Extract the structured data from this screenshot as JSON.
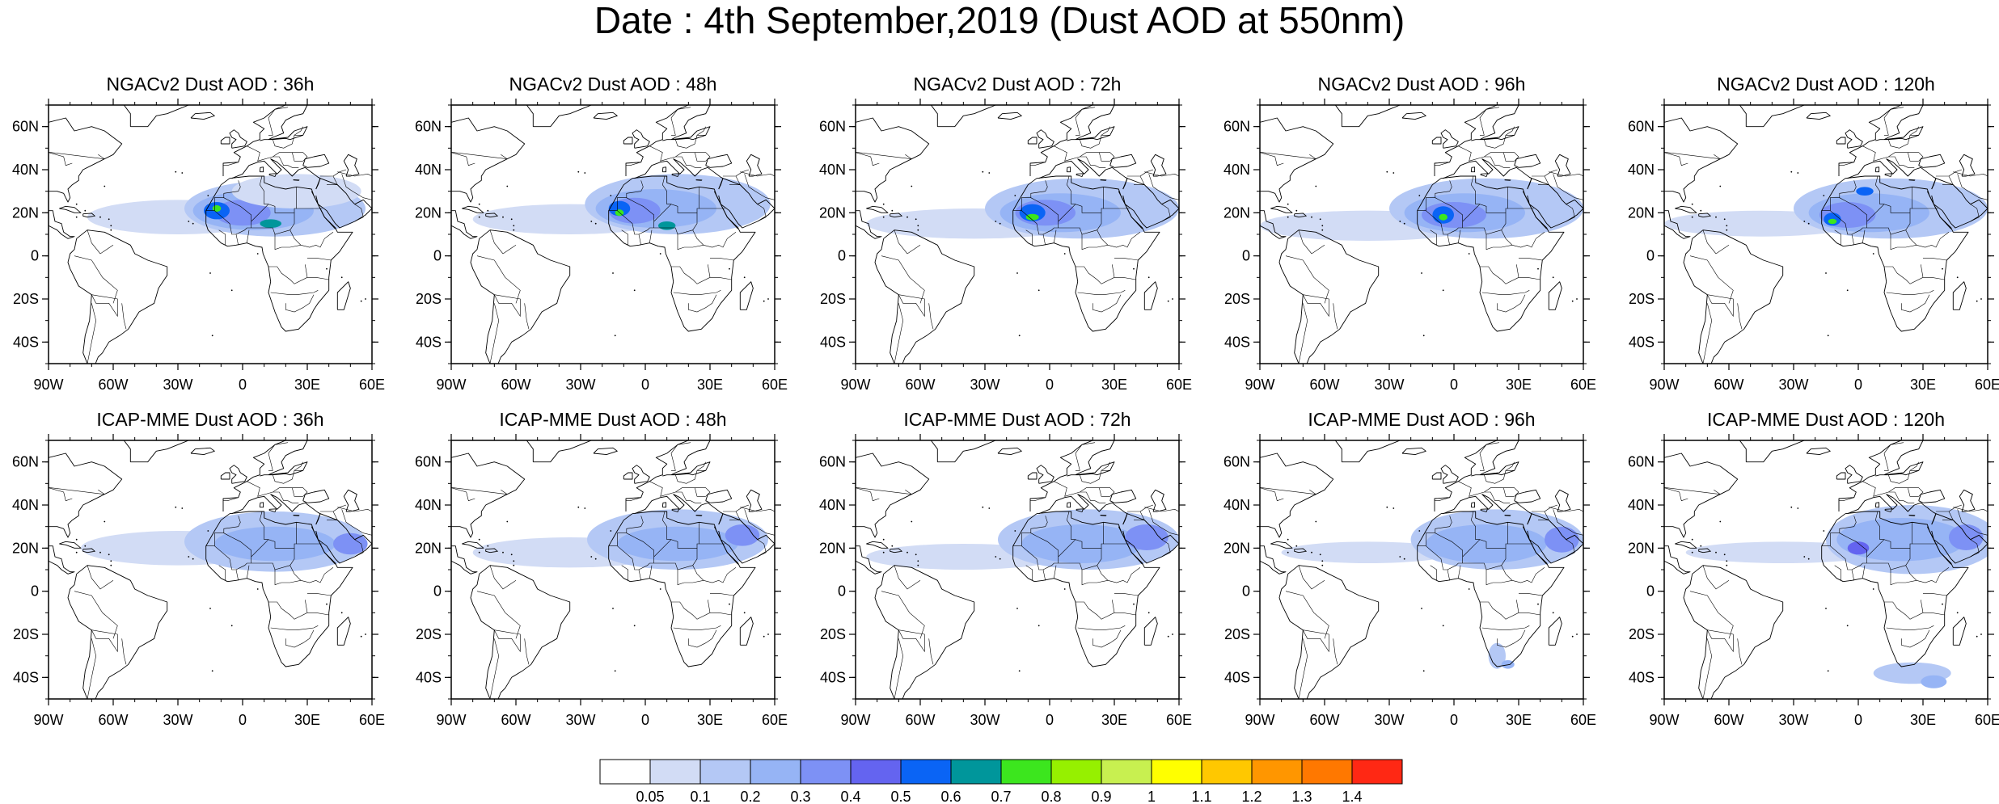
{
  "title": "Date : 4th September,2019 (Dust AOD at 550nm)",
  "lon_range": [
    -90,
    60
  ],
  "lat_range": [
    -50,
    70
  ],
  "lon_ticks": [
    {
      "value": -90,
      "label": "90W"
    },
    {
      "value": -60,
      "label": "60W"
    },
    {
      "value": -30,
      "label": "30W"
    },
    {
      "value": 0,
      "label": "0"
    },
    {
      "value": 30,
      "label": "30E"
    },
    {
      "value": 60,
      "label": "60E"
    }
  ],
  "lat_ticks": [
    {
      "value": 60,
      "label": "60N"
    },
    {
      "value": 40,
      "label": "40N"
    },
    {
      "value": 20,
      "label": "20N"
    },
    {
      "value": 0,
      "label": "0"
    },
    {
      "value": -20,
      "label": "20S"
    },
    {
      "value": -40,
      "label": "40S"
    }
  ],
  "panels": [
    {
      "title": "NGACv2 Dust AOD : 36h",
      "model": "NGACv2",
      "lead": "36h",
      "plumes": [
        {
          "lon": -30,
          "lat": 18,
          "rlon": 42,
          "rlat": 8,
          "level": 0.1
        },
        {
          "lon": 15,
          "lat": 22,
          "rlon": 42,
          "rlat": 13,
          "level": 0.2
        },
        {
          "lon": 5,
          "lat": 21,
          "rlon": 28,
          "rlat": 9,
          "level": 0.3
        },
        {
          "lon": 0,
          "lat": 20,
          "rlon": 13,
          "rlat": 6,
          "level": 0.4
        },
        {
          "lon": -12,
          "lat": 21,
          "rlon": 6,
          "rlat": 4,
          "level": 0.6
        },
        {
          "lon": 13,
          "lat": 15,
          "rlon": 5,
          "rlat": 2,
          "level": 0.7
        },
        {
          "lon": -12,
          "lat": 22,
          "rlon": 2,
          "rlat": 1.5,
          "level": 0.8
        },
        {
          "lon": 25,
          "lat": 30,
          "rlon": 30,
          "rlat": 8,
          "level": 0.1
        }
      ]
    },
    {
      "title": "NGACv2 Dust AOD : 48h",
      "model": "NGACv2",
      "lead": "48h",
      "plumes": [
        {
          "lon": -35,
          "lat": 17,
          "rlon": 45,
          "rlat": 7,
          "level": 0.1
        },
        {
          "lon": 15,
          "lat": 24,
          "rlon": 43,
          "rlat": 14,
          "level": 0.2
        },
        {
          "lon": 5,
          "lat": 22,
          "rlon": 28,
          "rlat": 9,
          "level": 0.3
        },
        {
          "lon": -5,
          "lat": 21,
          "rlon": 12,
          "rlat": 6,
          "level": 0.4
        },
        {
          "lon": -12,
          "lat": 22,
          "rlon": 5,
          "rlat": 3.5,
          "level": 0.6
        },
        {
          "lon": 10,
          "lat": 14,
          "rlon": 4,
          "rlat": 2,
          "level": 0.7
        },
        {
          "lon": -12,
          "lat": 20,
          "rlon": 2,
          "rlat": 1.5,
          "level": 0.8
        }
      ]
    },
    {
      "title": "NGACv2 Dust AOD : 72h",
      "model": "NGACv2",
      "lead": "72h",
      "plumes": [
        {
          "lon": -35,
          "lat": 15,
          "rlon": 50,
          "rlat": 7,
          "level": 0.1
        },
        {
          "lon": 15,
          "lat": 22,
          "rlon": 45,
          "rlat": 14,
          "level": 0.2
        },
        {
          "lon": 5,
          "lat": 20,
          "rlon": 28,
          "rlat": 9,
          "level": 0.3
        },
        {
          "lon": -2,
          "lat": 20,
          "rlon": 14,
          "rlat": 6,
          "level": 0.4
        },
        {
          "lon": -8,
          "lat": 20,
          "rlon": 6,
          "rlat": 4,
          "level": 0.6
        },
        {
          "lon": -8,
          "lat": 18,
          "rlon": 3,
          "rlat": 1.5,
          "level": 0.8
        }
      ]
    },
    {
      "title": "NGACv2 Dust AOD : 96h",
      "model": "NGACv2",
      "lead": "96h",
      "plumes": [
        {
          "lon": -40,
          "lat": 14,
          "rlon": 50,
          "rlat": 7,
          "level": 0.1
        },
        {
          "lon": 15,
          "lat": 22,
          "rlon": 45,
          "rlat": 14,
          "level": 0.2
        },
        {
          "lon": 5,
          "lat": 20,
          "rlon": 28,
          "rlat": 9,
          "level": 0.3
        },
        {
          "lon": 0,
          "lat": 19,
          "rlon": 15,
          "rlat": 6,
          "level": 0.4
        },
        {
          "lon": -5,
          "lat": 19,
          "rlon": 5,
          "rlat": 4,
          "level": 0.6
        },
        {
          "lon": -5,
          "lat": 18,
          "rlon": 2,
          "rlat": 1.5,
          "level": 0.8
        }
      ]
    },
    {
      "title": "NGACv2 Dust AOD : 120h",
      "model": "NGACv2",
      "lead": "120h",
      "plumes": [
        {
          "lon": -45,
          "lat": 15,
          "rlon": 45,
          "rlat": 6,
          "level": 0.1
        },
        {
          "lon": 15,
          "lat": 22,
          "rlon": 45,
          "rlat": 14,
          "level": 0.2
        },
        {
          "lon": 5,
          "lat": 20,
          "rlon": 28,
          "rlat": 9,
          "level": 0.3
        },
        {
          "lon": -5,
          "lat": 19,
          "rlon": 13,
          "rlat": 6,
          "level": 0.4
        },
        {
          "lon": -12,
          "lat": 17,
          "rlon": 4,
          "rlat": 3,
          "level": 0.6
        },
        {
          "lon": 3,
          "lat": 30,
          "rlon": 4,
          "rlat": 2,
          "level": 0.6
        },
        {
          "lon": -12,
          "lat": 16,
          "rlon": 2,
          "rlat": 1.2,
          "level": 0.8
        }
      ]
    },
    {
      "title": "ICAP-MME Dust AOD : 36h",
      "model": "ICAP-MME",
      "lead": "36h",
      "plumes": [
        {
          "lon": -30,
          "lat": 20,
          "rlon": 45,
          "rlat": 8,
          "level": 0.1
        },
        {
          "lon": 15,
          "lat": 23,
          "rlon": 42,
          "rlat": 14,
          "level": 0.2
        },
        {
          "lon": 15,
          "lat": 22,
          "rlon": 28,
          "rlat": 8,
          "level": 0.3
        },
        {
          "lon": 50,
          "lat": 22,
          "rlon": 8,
          "rlat": 5,
          "level": 0.4
        }
      ]
    },
    {
      "title": "ICAP-MME Dust AOD : 48h",
      "model": "ICAP-MME",
      "lead": "48h",
      "plumes": [
        {
          "lon": -35,
          "lat": 18,
          "rlon": 45,
          "rlat": 7,
          "level": 0.1
        },
        {
          "lon": 15,
          "lat": 24,
          "rlon": 42,
          "rlat": 14,
          "level": 0.2
        },
        {
          "lon": 15,
          "lat": 22,
          "rlon": 28,
          "rlat": 8,
          "level": 0.3
        },
        {
          "lon": 45,
          "lat": 26,
          "rlon": 8,
          "rlat": 5,
          "level": 0.4
        }
      ]
    },
    {
      "title": "ICAP-MME Dust AOD : 72h",
      "model": "ICAP-MME",
      "lead": "72h",
      "plumes": [
        {
          "lon": -40,
          "lat": 16,
          "rlon": 45,
          "rlat": 6,
          "level": 0.1
        },
        {
          "lon": 18,
          "lat": 24,
          "rlon": 42,
          "rlat": 14,
          "level": 0.2
        },
        {
          "lon": 15,
          "lat": 22,
          "rlon": 28,
          "rlat": 9,
          "level": 0.3
        },
        {
          "lon": 45,
          "lat": 25,
          "rlon": 10,
          "rlat": 6,
          "level": 0.4
        }
      ]
    },
    {
      "title": "ICAP-MME Dust AOD : 96h",
      "model": "ICAP-MME",
      "lead": "96h",
      "plumes": [
        {
          "lon": -40,
          "lat": 18,
          "rlon": 40,
          "rlat": 5,
          "level": 0.1
        },
        {
          "lon": 20,
          "lat": 24,
          "rlon": 40,
          "rlat": 14,
          "level": 0.2
        },
        {
          "lon": 15,
          "lat": 22,
          "rlon": 28,
          "rlat": 9,
          "level": 0.3
        },
        {
          "lon": 50,
          "lat": 24,
          "rlon": 8,
          "rlat": 6,
          "level": 0.4
        },
        {
          "lon": 20,
          "lat": -30,
          "rlon": 4,
          "rlat": 6,
          "level": 0.2
        },
        {
          "lon": 25,
          "lat": -34,
          "rlon": 3,
          "rlat": 2,
          "level": 0.3
        }
      ]
    },
    {
      "title": "ICAP-MME Dust AOD : 120h",
      "model": "ICAP-MME",
      "lead": "120h",
      "plumes": [
        {
          "lon": -35,
          "lat": 18,
          "rlon": 45,
          "rlat": 5,
          "level": 0.1
        },
        {
          "lon": 25,
          "lat": 24,
          "rlon": 40,
          "rlat": 16,
          "level": 0.2
        },
        {
          "lon": 20,
          "lat": 24,
          "rlon": 30,
          "rlat": 10,
          "level": 0.3
        },
        {
          "lon": 50,
          "lat": 25,
          "rlon": 8,
          "rlat": 6,
          "level": 0.4
        },
        {
          "lon": 0,
          "lat": 20,
          "rlon": 5,
          "rlat": 3,
          "level": 0.5
        },
        {
          "lon": 25,
          "lat": -38,
          "rlon": 18,
          "rlat": 5,
          "level": 0.2
        },
        {
          "lon": 35,
          "lat": -42,
          "rlon": 6,
          "rlat": 3,
          "level": 0.3
        }
      ]
    }
  ],
  "colorbar": {
    "labels": [
      "0.05",
      "0.1",
      "0.2",
      "0.3",
      "0.4",
      "0.5",
      "0.6",
      "0.7",
      "0.8",
      "0.9",
      "1",
      "1.1",
      "1.2",
      "1.3",
      "1.4"
    ],
    "colors": [
      "#ffffff",
      "#d2dcf5",
      "#b4c8f5",
      "#96b4f5",
      "#7d91f5",
      "#6464f0",
      "#0a64f5",
      "#00969b",
      "#3ce61e",
      "#96f000",
      "#c8f050",
      "#ffff00",
      "#ffc800",
      "#ff9600",
      "#ff7800",
      "#ff2814"
    ]
  },
  "level_colors": {
    "0.1": "#d2dcf5",
    "0.2": "#b4c8f5",
    "0.3": "#96b4f5",
    "0.4": "#7d91f5",
    "0.5": "#6464f0",
    "0.6": "#0a64f5",
    "0.7": "#00969b",
    "0.8": "#3ce61e"
  }
}
